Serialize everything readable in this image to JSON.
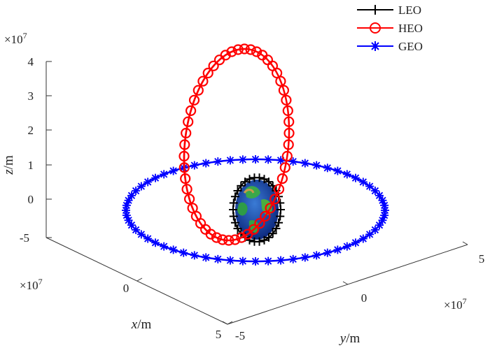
{
  "chart_data": {
    "type": "line3d",
    "title": "",
    "axes": {
      "x": {
        "label_var": "x",
        "label_unit": "/m",
        "exponent_label": "×10",
        "exponent": "7",
        "ticks": [
          "0",
          "5"
        ],
        "range": [
          -50000000.0,
          50000000.0
        ]
      },
      "y": {
        "label_var": "y",
        "label_unit": "/m",
        "exponent_label": "×10",
        "exponent": "7",
        "ticks": [
          "-5",
          "0",
          "5"
        ],
        "range": [
          -50000000.0,
          50000000.0
        ]
      },
      "z": {
        "label_var": "z",
        "label_unit": "/m",
        "exponent_label": "×10",
        "exponent": "7",
        "ticks": [
          "-5",
          "0",
          "1",
          "2",
          "3",
          "4"
        ],
        "range": [
          -50000000.0,
          40000000.0
        ]
      }
    },
    "grid": false,
    "legend_position": "top-right",
    "earth_marker": "Earth globe at origin",
    "series": [
      {
        "name": "LEO",
        "color": "#000000",
        "marker": "plus",
        "orbit_radius_m": 7000000.0,
        "description": "near-circular low orbit around origin"
      },
      {
        "name": "HEO",
        "color": "#ff0000",
        "marker": "circle",
        "perigee_m": 7000000.0,
        "apogee_z_m": 42000000.0,
        "description": "highly elliptical orbit in vertical plane"
      },
      {
        "name": "GEO",
        "color": "#0000ff",
        "marker": "asterisk",
        "orbit_radius_m": 42164000.0,
        "description": "circular equatorial orbit"
      }
    ]
  }
}
